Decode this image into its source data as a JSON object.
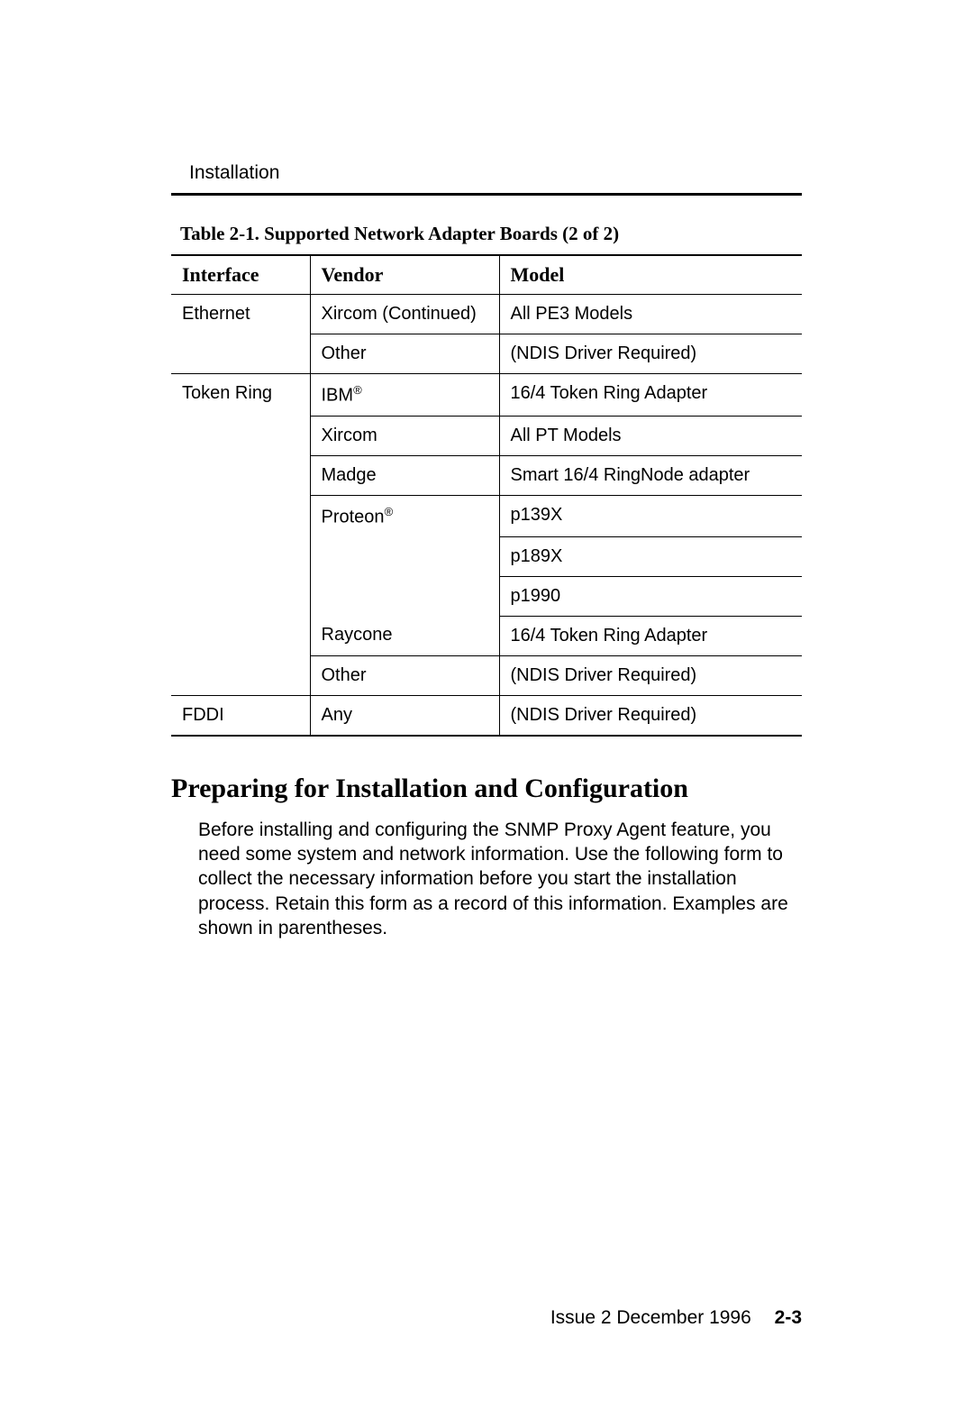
{
  "header": {
    "section": "Installation"
  },
  "table": {
    "caption": "Table 2-1.  Supported Network Adapter Boards (2 of 2)",
    "columns": {
      "interface": "Interface",
      "vendor": "Vendor",
      "model": "Model"
    },
    "col_widths": [
      "22%",
      "30%",
      "48%"
    ],
    "rows": [
      {
        "interface": "Ethernet",
        "vendor": "Xircom (Continued)",
        "model": "All PE3 Models",
        "iface_border": false
      },
      {
        "interface": "",
        "vendor": "Other",
        "model": "(NDIS Driver Required)",
        "iface_border": false
      },
      {
        "interface": "Token Ring",
        "vendor": "IBM",
        "vendor_reg": true,
        "model": "16/4 Token Ring Adapter",
        "iface_border": true
      },
      {
        "interface": "",
        "vendor": "Xircom",
        "model": "All PT Models",
        "iface_border": false
      },
      {
        "interface": "",
        "vendor": "Madge",
        "model": "Smart 16/4 RingNode adapter",
        "iface_border": false
      },
      {
        "interface": "",
        "vendor": "Proteon",
        "vendor_reg": true,
        "model": "p139X",
        "iface_border": false
      },
      {
        "interface": "",
        "vendor": "",
        "vendor_noborder": true,
        "model": "p189X",
        "iface_border": false
      },
      {
        "interface": "",
        "vendor": "",
        "vendor_noborder": true,
        "model": "p1990",
        "iface_border": false
      },
      {
        "interface": "",
        "vendor": "Raycone",
        "model": "16/4 Token Ring Adapter",
        "iface_border": false
      },
      {
        "interface": "",
        "vendor": "Other",
        "model": "(NDIS Driver Required)",
        "iface_border": false
      },
      {
        "interface": "FDDI",
        "vendor": "Any",
        "model": "(NDIS Driver Required)",
        "iface_border": true,
        "last": true
      }
    ]
  },
  "section": {
    "heading": "Preparing for Installation and Configuration",
    "body": "Before installing and configuring the SNMP Proxy Agent feature, you need some system and network information. Use the following form to collect the necessary information before you start the installation process. Retain this form as a record of this information. Examples are shown in parentheses."
  },
  "footer": {
    "issue": "Issue 2   December 1996",
    "pagenum": "2-3"
  },
  "colors": {
    "text": "#000000",
    "background": "#ffffff",
    "rule": "#000000"
  },
  "fonts": {
    "serif": "Times New Roman",
    "sans": "Arial"
  }
}
